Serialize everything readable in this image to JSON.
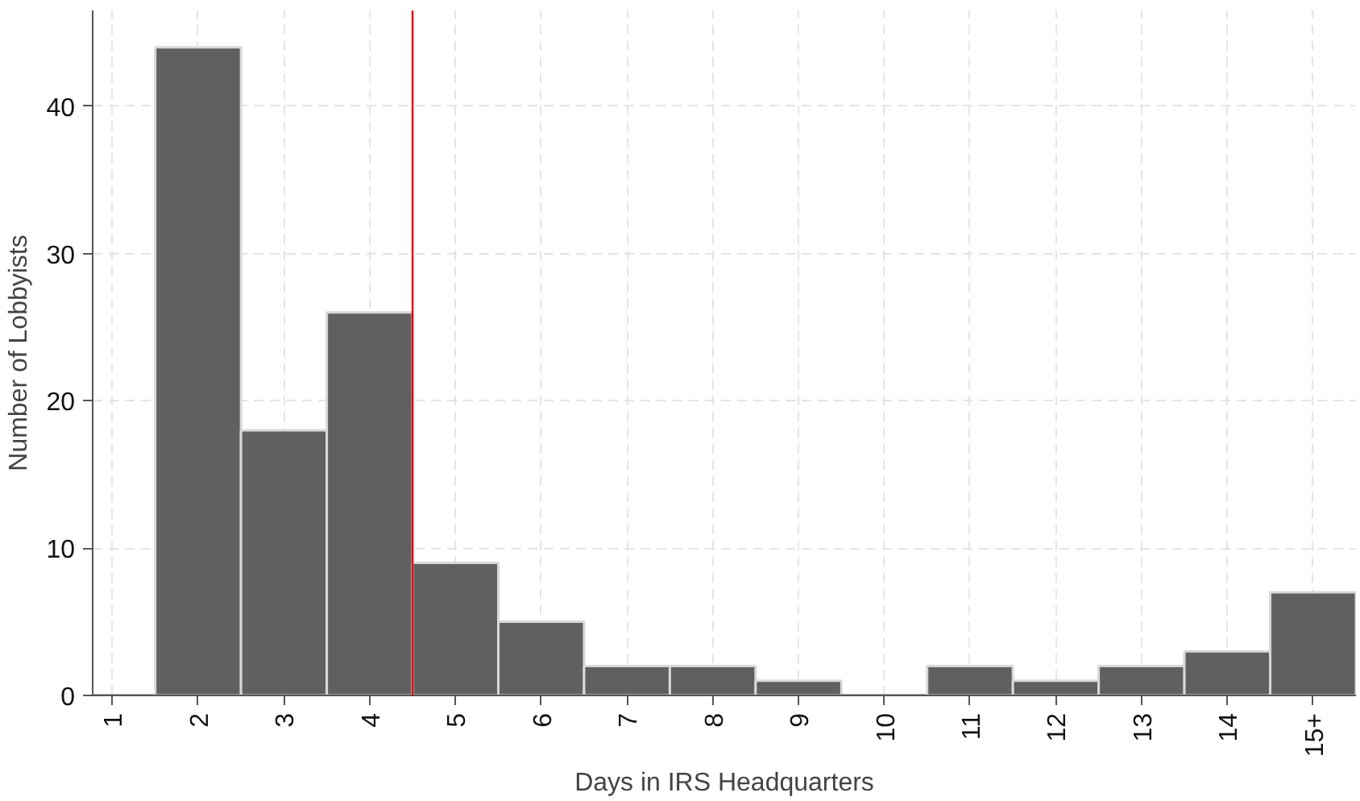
{
  "chart_data": {
    "type": "histogram",
    "xlabel": "Days in IRS Headquarters",
    "ylabel": "Number of Lobbyists",
    "bins": [
      0.5,
      1.5,
      2.5,
      3.5,
      4.5,
      5.5,
      6.5,
      7.5,
      8.5,
      9.5,
      10.5,
      11.5,
      12.5,
      13.5,
      14.5,
      15.5
    ],
    "values": [
      0,
      44,
      18,
      26,
      9,
      5,
      2,
      2,
      1,
      0,
      2,
      1,
      2,
      3,
      7
    ],
    "color": "#606060",
    "xlim": [
      0.77,
      15.5
    ],
    "xticks": [
      1,
      2,
      3,
      4,
      5,
      6,
      7,
      8,
      9,
      10,
      11,
      12,
      13,
      14,
      {
        "value": 15,
        "label": "15+"
      }
    ],
    "ylim": [
      0,
      46.5
    ],
    "yticks": [
      0,
      10,
      20,
      30,
      40
    ],
    "grid": true,
    "ref_lines": [
      {
        "axis": "x",
        "value": 4.5,
        "color": "#e00000"
      }
    ]
  }
}
